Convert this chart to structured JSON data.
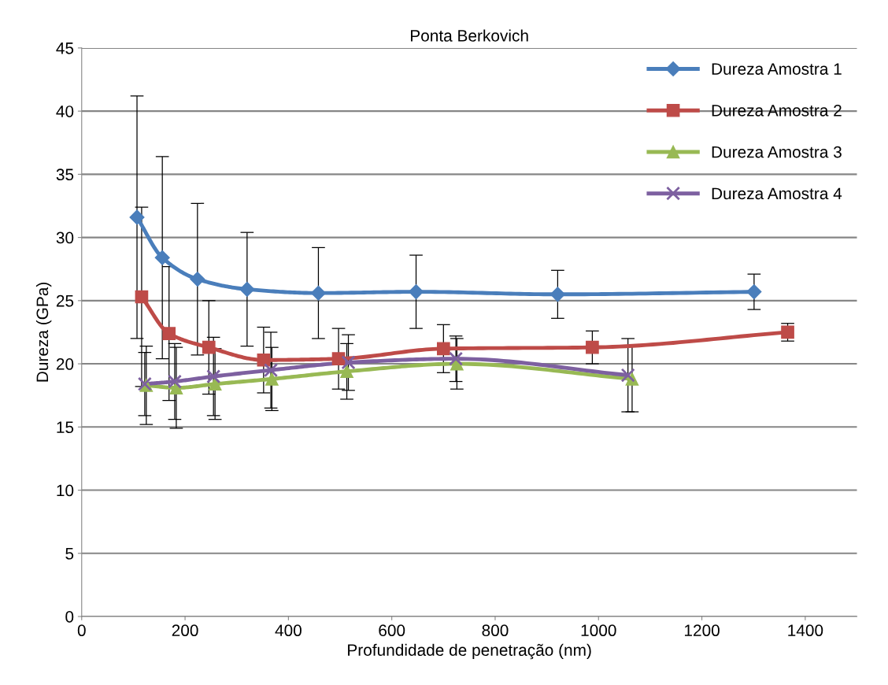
{
  "chart_data": {
    "type": "line",
    "title": "Ponta Berkovich",
    "xlabel": "Profundidade de penetração (nm)",
    "ylabel": "Dureza (GPa)",
    "xlim": [
      0,
      1500
    ],
    "xticks": [
      0,
      200,
      400,
      600,
      800,
      1000,
      1200,
      1400
    ],
    "ylim": [
      0,
      45
    ],
    "yticks": [
      0,
      5,
      10,
      15,
      20,
      25,
      30,
      35,
      40,
      45
    ],
    "grid": "y",
    "legend": "top right",
    "series": [
      {
        "name": "Dureza Amostra 1",
        "color": "#4a7ebb",
        "marker": "diamond",
        "x": [
          107,
          156,
          224,
          320,
          458,
          647,
          921,
          1301
        ],
        "values": [
          31.6,
          28.4,
          26.7,
          25.9,
          25.6,
          25.7,
          25.5,
          25.7
        ],
        "errors": [
          9.6,
          8,
          6,
          4.5,
          3.6,
          2.9,
          1.9,
          1.4
        ]
      },
      {
        "name": "Dureza Amostra 2",
        "color": "#be4b48",
        "marker": "square",
        "x": [
          116,
          169,
          246,
          352,
          497,
          700,
          988,
          1366
        ],
        "values": [
          25.3,
          22.4,
          21.3,
          20.3,
          20.4,
          21.2,
          21.3,
          22.5
        ],
        "errors": [
          7.1,
          5.3,
          3.7,
          2.6,
          2.4,
          1.9,
          1.3,
          0.7
        ]
      },
      {
        "name": "Dureza Amostra 3",
        "color": "#98b954",
        "marker": "triangle",
        "x": [
          125,
          183,
          258,
          368,
          513,
          726,
          1065
        ],
        "values": [
          18.3,
          18.1,
          18.4,
          18.8,
          19.4,
          20,
          18.8
        ],
        "errors": [
          3.1,
          3.2,
          2.8,
          2.5,
          2.2,
          2,
          2.6
        ]
      },
      {
        "name": "Dureza Amostra 4",
        "color": "#7d60a0",
        "marker": "cross",
        "x": [
          122,
          180,
          255,
          366,
          516,
          724,
          1057
        ],
        "values": [
          18.4,
          18.6,
          19,
          19.5,
          20.1,
          20.4,
          19.1
        ],
        "errors": [
          2.5,
          3,
          3.1,
          3,
          2.2,
          1.8,
          2.9
        ]
      }
    ]
  }
}
